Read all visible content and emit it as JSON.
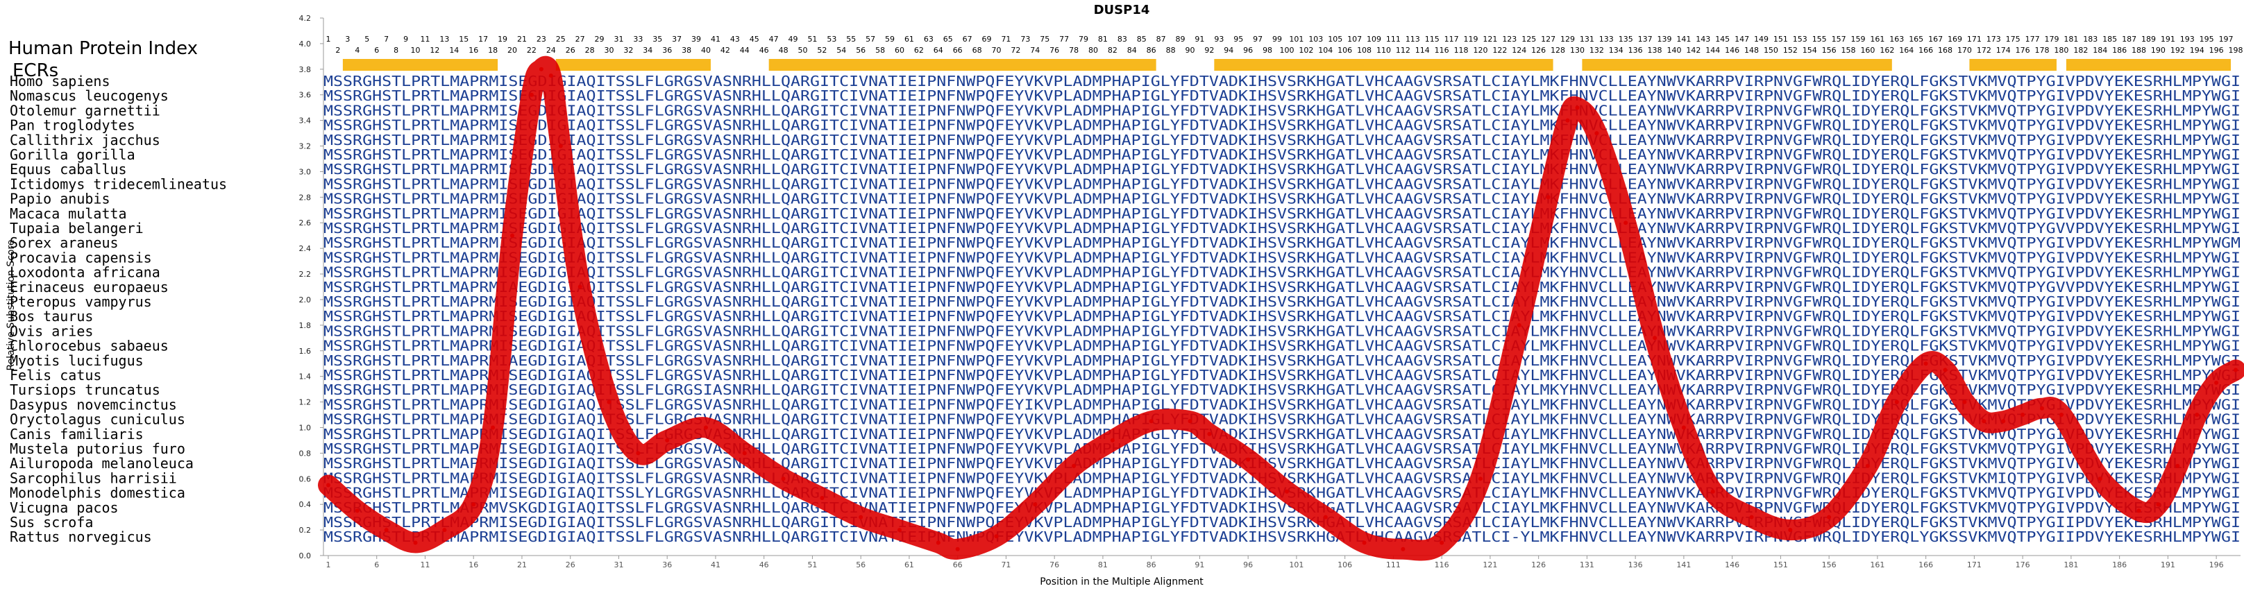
{
  "chart_data": {
    "type": "line",
    "title": "DUSP14",
    "xlabel": "Position in the Multiple Alignment",
    "ylabel": "Relative Substitution Score",
    "ylim": [
      0.0,
      4.2
    ],
    "xlim": [
      1,
      198
    ],
    "yticks": [
      "0.0",
      "0.2",
      "0.4",
      "0.6",
      "0.8",
      "1.0",
      "1.2",
      "1.4",
      "1.6",
      "1.8",
      "2.0",
      "2.2",
      "2.4",
      "2.6",
      "2.8",
      "3.0",
      "3.2",
      "3.4",
      "3.6",
      "3.8",
      "4.0",
      "4.2"
    ],
    "xticks": [
      1,
      6,
      11,
      16,
      21,
      26,
      31,
      36,
      41,
      46,
      51,
      56,
      61,
      66,
      71,
      76,
      81,
      86,
      91,
      96,
      101,
      106,
      111,
      116,
      121,
      126,
      131,
      136,
      141,
      146,
      151,
      156,
      161,
      166,
      171,
      176,
      181,
      186,
      191,
      196
    ],
    "header_label": "Human Protein Index",
    "ecr_label": "ECRs",
    "ecrs": [
      [
        3,
        18
      ],
      [
        25,
        40
      ],
      [
        47,
        86
      ],
      [
        93,
        127
      ],
      [
        131,
        162
      ],
      [
        171,
        179
      ],
      [
        181,
        197
      ]
    ],
    "series": [
      {
        "color": "#dd0000",
        "x": [
          1,
          4,
          7,
          10,
          13,
          16,
          18,
          20,
          22,
          23,
          24,
          25,
          27,
          30,
          33,
          36,
          40,
          44,
          48,
          52,
          56,
          60,
          64,
          66,
          70,
          74,
          78,
          82,
          86,
          90,
          92,
          96,
          100,
          104,
          108,
          112,
          116,
          120,
          124,
          127,
          129,
          130,
          132,
          135,
          138,
          141,
          144,
          148,
          152,
          156,
          160,
          163,
          166,
          168,
          170,
          172,
          174,
          176,
          178,
          180,
          184,
          188,
          190,
          192,
          194,
          196,
          198
        ],
        "y": [
          0.55,
          0.35,
          0.2,
          0.1,
          0.2,
          0.4,
          1.0,
          2.5,
          3.6,
          3.8,
          3.75,
          3.2,
          2.1,
          1.2,
          0.8,
          0.9,
          1.0,
          0.8,
          0.6,
          0.45,
          0.3,
          0.2,
          0.1,
          0.05,
          0.15,
          0.4,
          0.7,
          0.9,
          1.05,
          1.05,
          0.95,
          0.75,
          0.5,
          0.3,
          0.1,
          0.05,
          0.1,
          0.6,
          1.8,
          2.8,
          3.4,
          3.5,
          3.3,
          2.6,
          1.7,
          1.0,
          0.5,
          0.3,
          0.2,
          0.3,
          0.7,
          1.2,
          1.5,
          1.45,
          1.2,
          1.05,
          1.05,
          1.1,
          1.15,
          1.1,
          0.6,
          0.35,
          0.4,
          0.7,
          1.1,
          1.35,
          1.45
        ]
      }
    ],
    "highlight_color": "#f7b81d",
    "sequence_color": "#1c3f93",
    "conserved_color": "#6fa0d8"
  },
  "species": [
    "Homo sapiens",
    "Nomascus leucogenys",
    "Otolemur garnettii",
    "Pan troglodytes",
    "Callithrix jacchus",
    "Gorilla gorilla",
    "Equus caballus",
    "Ictidomys tridecemlineatus",
    "Papio anubis",
    "Macaca mulatta",
    "Tupaia belangeri",
    "Sorex araneus",
    "Procavia capensis",
    "Loxodonta africana",
    "Erinaceus europaeus",
    "Pteropus vampyrus",
    "Bos taurus",
    "Ovis aries",
    "Chlorocebus sabaeus",
    "Myotis lucifugus",
    "Felis catus",
    "Tursiops truncatus",
    "Dasypus novemcinctus",
    "Oryctolagus cuniculus",
    "Canis familiaris",
    "Mustela putorius furo",
    "Ailuropoda melanoleuca",
    "Sarcophilus harrisii",
    "Monodelphis domestica",
    "Vicugna pacos",
    "Sus scrofa",
    "Rattus norvegicus"
  ],
  "sequences": [
    "MSSRGHSTLPRTLMAPRMISEGDIGIAQITSSLFLGRGSVASNRHLLQARGITCIVNATIEIPNFNWPQFEYVKVPLADMPHAPIGLYFDTVADKIHSVSRKHGATLVHCAAGVSRSATLCIAYLMKFHNVCLLEAYNWVKARRPVIRPNVGFWRQLIDYERQLFGKSTVKMVQTPYGIVPDVYEKESRHLMPYWGI",
    "MSSRGHSTLPRTLMAPRMISEGDIGIAQITSSLFLGRGSVASNRHLLQARGITCIVNATIEIPNFNWPQFEYVKVPLADMPHAPIGLYFDTVADKIHSVSRKHGATLVHCAAGVSRSATLCIAYLMKFHNVCLLEAYNWVKARRPVIRPNVGFWRQLIDYERQLFGKSTVKMVQTPYGIVPDVYEKESRHLMPYWGI",
    "MSSRGHSTLPRTLMAPRMISEGDIGIAQITSSLFLGRGSVASNRHLLQARGITCIVNATIEIPNFNWPQFEYVKVPLADMPHAPIGLYFDTVADKIHSVSRKHGATLVHCAAGVSRSATLCIAYLMKFHNVCLLEAYNWVKARRPVIRPNVGFWRQLIDYERQLFGKSTVKMVQTPYGIVPDVYEKESRHLMPYWGI",
    "MSSRGHSTLPRTLMAPRMISEGDIGIAQITSSLFLGRGSVASNRHLLQARGITCIVNATIEIPNFNWPQFEYVKVPLADMPHAPIGLYFDTVADKIHSVSRKHGATLVHCAAGVSRSATLCIAYLMKFHNVCLLEAYNWVKARRPVIRPNVGFWRQLIDYERQLFGKSTVKMVQTPYGIVPDVYEKESRHLMPYWGI",
    "MSSRGHSTLPRTLMAPRMISEGDIGIAQITSSLFLGRGSVASNRHLLQARGITCIVNATIEIPNFNWPQFEYVKVPLADMPHAPIGLYFDTVADKIHSVSRKHGATLVHCAAGVSRSATLCIAYLMKFHNVCLLEAYNWVKARRPVIRPNVGFWRQLIDYERQLFGKSTVKMVQTPYGIVPDVYEKESRHLMPYWGI",
    "MSSRGHSTLPRTLMAPRMISEGDIGIAQITSSLFLGRGSVASNRHLLQARGITCIVNATIEIPNFNWPQFEYVKVPLADMPHAPIGLYFDTVADKIHSVSRKHGATLVHCAAGVSRSATLCIAYLMKFHNVCLLEAYNWVKARRPVIRPNVGFWRQLIDYERQLFGKSTVKMVQTPYGIVPDVYEKESRHLMPYWGI",
    "MSSRGHSTLPRTLMAPRMISEGDIGIAQITSSLFLGRGSVASNRHLLQARGITCIVNATIEIPNFNWPQFEYVKVPLADMPHAPIGLYFDTVADKIHSVSRKHGATLVHCAAGVSRSATLCIAYLMKFHNVCLLEAYNWVKARRPVIRPNVGFWRQLIDYERQLFGKSTVKMVQTPYGIVPDVYEKESRHLMPYWGI",
    "MSSRGHSTLPRTLMAPRMISEGDIGIAQITSSLFLGRGSVASNRHLLQARGITCIVNATIEIPNFNWPQFEYVKVPLADMPHAPIGLYFDTVADKIHSVSRKHGATLVHCAAGVSRSATLCIAYLMKFHNVCLLEAYNWVKARRPVIRPNVGFWRQLIDYERQLFGKSTVKMVQTPYGIVPDVYEKESRHLMPYWGI",
    "MSSRGHSTLPRTLMAPRMISEGDIGIAQITSSLFLGRGSVASNRHLLQARGITCIVNATIEIPNFNWPQFEYVKVPLADMPHAPIGLYFDTVADKIHSVSRKHGATLVHCAAGVSRSATLCIAYLMKFHNVCLLEAYNWVKARRPVIRPNVGFWRQLIDYERQLFGKSTVKMVQTPYGIVPDVYEKESRHLMPYWGI",
    "MSSRGHSTLPRTLMAPRMISEGDIGIAQITSSLFLGRGSVASNRHLLQARGITCIVNATIEIPNFNWPQFEYVKVPLADMPHAPIGLYFDTVADKIHSVSRKHGATLVHCAAGVSRSATLCIAYLMKFHNVCLLEAYNWVKARRPVIRPNVGFWRQLIDYERQLFGKSTVKMVQTPYGIVPDVYEKESRHLMPYWGI",
    "MSSRGHSTLPRTLMAPRMISEGDIGIAQITSSLFLGRGSVASNRHLLQARGITCIVNATIEIPNFNWPQFEYVKVPLADMPHAPIGLYFDTVADKIHSVSRKHGATLVHCAAGVSRSATLCIAYLMKFHNVCLLEAYNWVKARRPVIRPNVGFWRQLIDYERQLFGKSTVKMVQTPYGVVPDVYEKESRHLMPYWGI",
    "MSSRGHSTLPRTLMAPRMISEGDIGIAQITSSLFLGRGSVASNRHLLQARGITCIVNATIEIPNFNWPQFEYVKVPLADMPHAPIGLYFDTVADKIHSVSRKHGATLVHCAAGVSRSATLCIAYLMKFHNVCLLEAYNWVKARRPVIRPNVGFWRQLIDYERQLFGKSTVKMVQTPYGIVPDVYEKESRHLMPYWGM",
    "MSSRGHSTLPRTLMAPRMISEGDIGIAQITSSLFLGRGSVASNRHLLQARGITCIVNATIEIPNFNWPQFEYVKVPLADMPHAPIGLYFDTVADKIHSVSRKHGATLVHCAAGVSRSATLCIAYLMKFHNVCLLEAYNWVKARRPVIRPNVGFWRQLIDYERQLFGKSTVKMVQTPYGIVPDVYEKESRHLMPYWGI",
    "MSSRGHSTLPRTLMAPRMISEGDIGIAQITSSLFLGRGSVASNRHLLQARGITCIVNATIEIPNFNWPQFEYVKVPLADMPHAPIGLYFDTVADKIHSVSRKHGATLVHCAAGVSRSATLCIAYLMKYHNVCLLEAYNWVKARRPVIRPNVGFWRQLIDYERQLFGKSTVKMVQTPYGIVPDVYEKESRHLMPYWGI",
    "MSSRGHSTLPRTLMAPRMIAEGDIGIAQITSSLFLGRGSVASNRHLLQARGITCIVNATIEIPNFNWPQFEYVKVPLADMPHAPIGLYFDTVADKIHSVSRKHGATLVHCAAGVSRSATLCIAYLMKFHNVCLLEAYNWVKARRPVIRPNVGFWRQLIDYERQLFGKSTVKMVQTPYGVVPDVYEKESRHLMPYWGI",
    "MSSRGHSTLPRTLMAPRMISEGDIGIAQITSSLFLGRGSVASNRHLLQARGITCIVNATIEIPNFNWPQFEYVKVPLADMPHAPIGLYFDTVADKIHSVSRKHGATLVHCAAGVSRSATLCIAYLMKFHNVCLLEAYNWVKARRPVIRPNVGFWRQLIDYERQLFGKSTVKMVQTPYGIVPDVYEKESRHLMPYWGI",
    "MSSRGHSTLPRTLMAPRMISEGDIGIAQITSSLFLGRGSVASNRHLLQARGITCIVNATIEIPNFNWPQFEYVKVPLADMPHAPIGLYFDTVADKIHSVSRKHGATLVHCAAGVSRSATLCIAYLMKFHNVCLLEAYNWVKARRPVIRPNVGFWRQLIDYERQLFGKSTVKMVQTPYGIVPDVYEKESRHLMPYWGI",
    "MSSRGHSTLPRTLMAPRMISEGDIGIAQITSSLFLGRGSVASNRHLLQARGITCIVNATIEIPNFNWPQFEYVKVPLADMPHAPIGLYFDTVADKIHSVSRKHGATLVHCAAGVSRSATLCIAYLMKFHNVCLLEAYNWVKARRPVIRPNVGFWRQLIDYERQLFGKSTVKMVQTPYGIVPDVYEKESRHLMPYWGI",
    "MSSRGHSTLPRTLMAPRMISEGDIGIAQITSSLFLGRGSVASNRHLLQARGITCIVNATIEIPNFNWPQFEYVKVPLADMPHAPIGLYFDTVADKIHSVSRKHGATLVHCAAGVSRSATLCIAYLMKFHNVCLLEAYNWVKARRPVIRPNVGFWRQLIDYERQLFGKSTVKMVQTPYGIVPDVYEKESRHLMPYWGI",
    "MSSRGHSTLPRTLMAPRMIAEGDIGIAQITSSLFLGRGSVASNRHLLQARGITCIVNATIEIPNFNWPQFEYVKVPLADMPHAPIGLYFDTVADKIHSVSRKHGATLVHCAAGVSRSATLCIAYLMKFHNVCLLEAYNWVKARRPVIRPNVGFWRQLIDYERQLFGKSTVKMVQTPYGIVPDVYEKESRHLMPYWGI",
    "MSSRGHSTLPRTLMAPRMISEGDIGIAQITSSLFLGRGSVASNRHLLQARGITCIVNATIEIPNFNWPQFEYVKVPLADMPHAPIGLYFDTVADKIHSVSRKHGATLVHCAAGVSRSATLCIAYLMKFHNVCLLEAYNWVKARRPVIRPNVGFWRQLIDYERQLFGKSTVKMVQTPYGIVPDVYEKESRHLMPYWGI",
    "MSSRGHSTLPRTLMAPRMISEGDIGIAQITSSLFLGRGSIASNRHLLQARGITCIVNATIEIPNFNWPQFEYVKVPLADMPHAPIGLYFDTVADKIHSVSRKHGATLVHCAAGVSRSATLCIAYLMKYHNVCLLEAYNWVKARRPVIRPNVGFWRQLIDYERQLFGKSTVKMVQTPYGIVPDVYEKESRHLMPYWGI",
    "MSSRGHSTLPRTLMAPRMISEGDIGIAQITSSLFLGRGSVASNRHLLQARGITCIVNATIEIPNFNWPQFEYIKVPLADMPHAPIGLYFDTVADKIHSVSRKHGATLVHCAAGVSRSATLCIAYLMKFHNVCLLEAYNWVKARRPVIRPNVGFWRQLIDYERQLFGKSTVKMVQTPYGIVPDVYEKESRHLMPYWGI",
    "MSSRGHSTLPRTLMAPRMISEGDIGIAQITSSLFLGRGSVASNRHLLQARGITCIVNATIEIPNFNWPQFEYVKVPLADMPHAPIGLYFDTVADKIHSVSRKHGATLVHCAAGVSRSATLCIAYLMKFHNVCLLEAYNWVKARRPVIRPNVGFWRQLIDYERQLFGKSTVKMVQTPYGIVPDVYEKESRHLMPYWGI",
    "MSSRGHSTLPRTLMAPRMISEGDIGIAQITSSLFLGRGSVASNRHLLQARGITCIVNATIEIPNFNWPQFEYVKVPLADMPHAPIGLYFDTVADKIHSVSRKHGATLVHCAAGVSRSATLCIAYLMKFHNVCLLEAYNWVKARRPVIRPNVGFWRQLIDYERQLFGKSTVKMVQTPYGIVPDVYEKESRHLMPYWGI",
    "MSSRGHSTLPRTLMAPRMISEGDIGIAQITSSLFLGRGSVASNRHLLQARGITCIVNATIEIPNFNWPQFEYVKVPLADMPHAPIGLYFDTVADKIHSVSRKHGATLVHCAAGVSRSATLCIAYLMKFHNVCLLEAYNWVKARRPVIRPNVGFWRQLIDYERQLFGKSTVKMVQTPYGIVPDVYEKESRHLMPYWGI",
    "MSSRGHSTLPRTLMAPRMISEGDIGIAQITSSLFLGRGSVASNRHLLQARGITCIVNATIEIPNFNWPQFEYVKVPLADMPHAPIGLYFDTVADKIHSVSRKHGATLVHCAAGVSRSATLCIAYLMKFHNVCLLEAYNWVKARRPVIRPNVGFWRQLIDYERQLFGKSTVKMVQTPYGIVPDVYEKESRHLMPYWGI",
    "MSSRGHSTLPRTLMAPRMISEGDIGIAQITSSLFLGRGSVASNRHLLQARGITCIVNATIEIPNFNWPQFEYVKVPLADMPHAPIGLYFDTVADKIHSVSRKHGATLVHCAAGVSRSATLCIAYLMKFHNVCLLEAYNWVKARRPVIRPNVGFWRQLIDYERQLFGKSTVKMIQTPYGIVPDVYEKESRHLMPYWGI",
    "MSSRGHSTLPRTLMAPRMISEGDIGIAQITSSLYLGRGSVASNRHLLQARGITCIVNATIEIPNFNWPQFEYVKVPLADMPHAPIGLYFDTVADKIHSVSRKHGATLVHCAAGVSRSATLCIAYLMKFHNVCLLEAYNWVKARRPVIRPNVGFWRQLIDYERQLFGKSTVKMVQTPYGIVPDVYEKESRHLMPYWGI",
    "MSSRGHSTLPRTLMAPRMVSKGDIGIAQITSSLFLGRGSVASNRHLLQARGITCIVNATIEIPNFNWPQFEYVKVPLADMPHAPIGLYFDTVADKIHSVSRKHGATLVHCAAGVSRSATLCIAYLMKFHNVCLLEAYNWVKARRPVIRPNVGFWRQLIDYERQLFGKSTVKMVQTPYGIVPDVYEKESRHLMPYWGI",
    "MSSRGHSTLPRTLMAPRMISEGDIGIAQITSSLFLGRGSVASNRHLLQARGITCIVNATIEIPNFNWPQFEYVKVPLADMPHAPIGLYFDTVADKIHSVSRKHGATLVHCAAGVSRSATLCIAYLMKFHNVCLLEAYNWVKARRPVIRPNVGFWRQLIDYERQLFGKSTVKMVQTPYGIIPDVYEKESRHLMPYWGI",
    "MSSRGHSTLPRTLMAPRMISEGDIGIAQITSSLFLGRGSVASNRHLLQARGITCIVNATIEIPNFNWPQFEYVKVPLADMPHAPIGLYFDTVADKIHSVSRKHGATLVHCAAGVSRSATLCI-YLMKFHNVCLLEAYNWVKARRPVIRPNVGFWRQLIDYERQLYGKSSVKMVQTPYGIIPDVYEKESRHLMPYWGI"
  ]
}
